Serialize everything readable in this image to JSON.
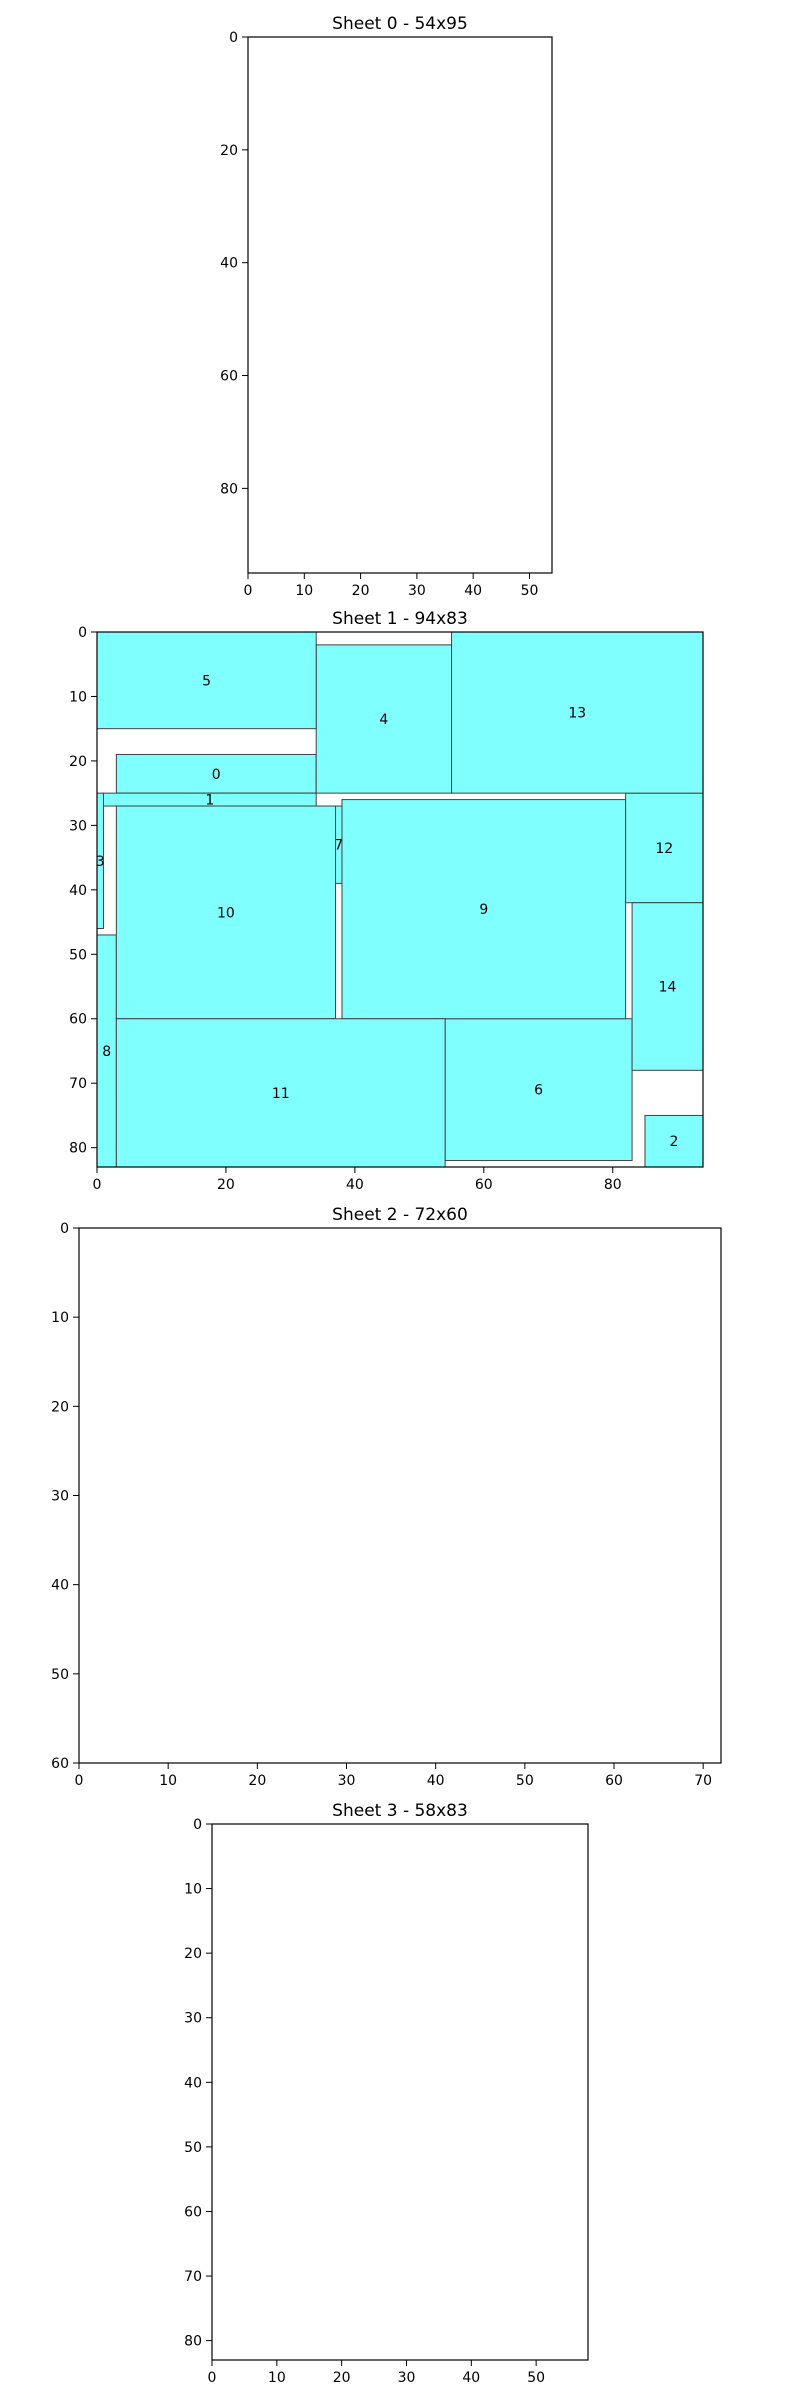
{
  "chart_data": [
    {
      "type": "rectangle-packing",
      "title": "Sheet 0 - 54x95",
      "sheet_width": 54,
      "sheet_height": 95,
      "xlim": [
        0,
        54
      ],
      "ylim": [
        95,
        0
      ],
      "x_ticks": [
        0,
        10,
        20,
        30,
        40,
        50
      ],
      "y_ticks": [
        0,
        20,
        40,
        60,
        80
      ],
      "pieces": []
    },
    {
      "type": "rectangle-packing",
      "title": "Sheet 1 - 94x83",
      "sheet_width": 94,
      "sheet_height": 83,
      "xlim": [
        0,
        94
      ],
      "ylim": [
        83,
        0
      ],
      "x_ticks": [
        0,
        20,
        40,
        60,
        80
      ],
      "y_ticks": [
        0,
        10,
        20,
        30,
        40,
        50,
        60,
        70,
        80
      ],
      "fill_color": "#80ffff",
      "edge_color": "#404040",
      "pieces": [
        {
          "id": "0",
          "x": 3,
          "y": 19,
          "w": 31,
          "h": 6
        },
        {
          "id": "1",
          "x": 1,
          "y": 25,
          "w": 33,
          "h": 2
        },
        {
          "id": "2",
          "x": 85,
          "y": 75,
          "w": 9,
          "h": 8
        },
        {
          "id": "3",
          "x": 0,
          "y": 25,
          "w": 1,
          "h": 21
        },
        {
          "id": "4",
          "x": 34,
          "y": 2,
          "w": 21,
          "h": 23
        },
        {
          "id": "5",
          "x": 0,
          "y": 0,
          "w": 34,
          "h": 15
        },
        {
          "id": "6",
          "x": 54,
          "y": 60,
          "w": 29,
          "h": 22
        },
        {
          "id": "7",
          "x": 37,
          "y": 27,
          "w": 1,
          "h": 12
        },
        {
          "id": "8",
          "x": 0,
          "y": 47,
          "w": 3,
          "h": 36
        },
        {
          "id": "9",
          "x": 38,
          "y": 26,
          "w": 44,
          "h": 34
        },
        {
          "id": "10",
          "x": 3,
          "y": 27,
          "w": 34,
          "h": 33
        },
        {
          "id": "11",
          "x": 3,
          "y": 60,
          "w": 51,
          "h": 23
        },
        {
          "id": "12",
          "x": 82,
          "y": 25,
          "w": 12,
          "h": 17
        },
        {
          "id": "13",
          "x": 55,
          "y": 0,
          "w": 39,
          "h": 25
        },
        {
          "id": "14",
          "x": 83,
          "y": 42,
          "w": 11,
          "h": 26
        }
      ]
    },
    {
      "type": "rectangle-packing",
      "title": "Sheet 2 - 72x60",
      "sheet_width": 72,
      "sheet_height": 60,
      "xlim": [
        0,
        72
      ],
      "ylim": [
        60,
        0
      ],
      "x_ticks": [
        0,
        10,
        20,
        30,
        40,
        50,
        60,
        70
      ],
      "y_ticks": [
        0,
        10,
        20,
        30,
        40,
        50,
        60
      ],
      "pieces": []
    },
    {
      "type": "rectangle-packing",
      "title": "Sheet 3 - 58x83",
      "sheet_width": 58,
      "sheet_height": 83,
      "xlim": [
        0,
        58
      ],
      "ylim": [
        83,
        0
      ],
      "x_ticks": [
        0,
        10,
        20,
        30,
        40,
        50
      ],
      "y_ticks": [
        0,
        10,
        20,
        30,
        40,
        50,
        60,
        70,
        80
      ],
      "pieces": []
    }
  ]
}
